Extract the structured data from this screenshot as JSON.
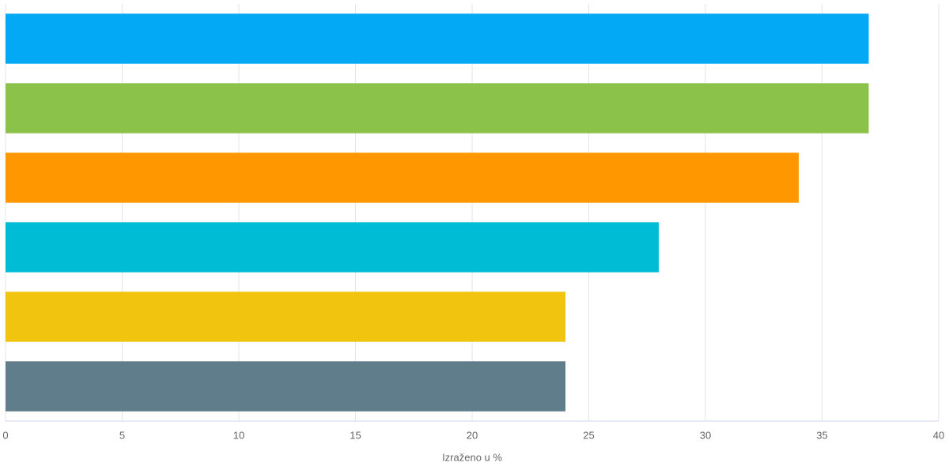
{
  "chart_data": {
    "type": "hbar",
    "categories": [
      null,
      null,
      null,
      null,
      null,
      null
    ],
    "values": [
      37,
      37,
      34,
      28,
      24,
      24
    ],
    "colors": [
      "#03a9f4",
      "#8bc34a",
      "#ff9800",
      "#00bcd4",
      "#f1c40f",
      "#607d8b"
    ],
    "xlabel": "Izraženo u %",
    "xlim": [
      0,
      40
    ],
    "xticks": [
      0,
      5,
      10,
      15,
      20,
      25,
      30,
      35,
      40
    ],
    "grid": true
  }
}
